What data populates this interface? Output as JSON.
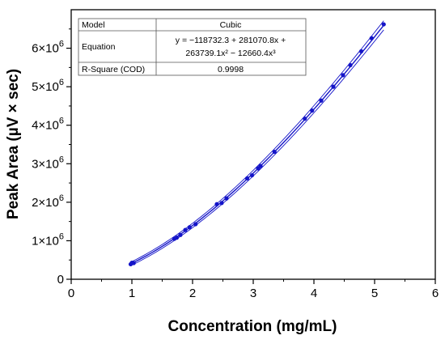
{
  "chart_data": {
    "type": "scatter",
    "xlabel": "Concentration (mg/mL)",
    "ylabel": "Peak Area (µV × sec)",
    "xlim": [
      0,
      6
    ],
    "ylim": [
      0,
      7000000
    ],
    "x_ticks": [
      {
        "value": 0,
        "label": "0"
      },
      {
        "value": 1,
        "label": "1"
      },
      {
        "value": 2,
        "label": "2"
      },
      {
        "value": 3,
        "label": "3"
      },
      {
        "value": 4,
        "label": "4"
      },
      {
        "value": 5,
        "label": "5"
      },
      {
        "value": 6,
        "label": "6"
      }
    ],
    "y_ticks": [
      {
        "value": 0,
        "label": "0",
        "exp": ""
      },
      {
        "value": 1000000,
        "label": "1×10",
        "exp": "6"
      },
      {
        "value": 2000000,
        "label": "2×10",
        "exp": "6"
      },
      {
        "value": 3000000,
        "label": "3×10",
        "exp": "6"
      },
      {
        "value": 4000000,
        "label": "4×10",
        "exp": "6"
      },
      {
        "value": 5000000,
        "label": "5×10",
        "exp": "6"
      },
      {
        "value": 6000000,
        "label": "6×10",
        "exp": "6"
      }
    ],
    "grid": false,
    "fit": {
      "model": "cubic",
      "coefficients": [
        -118732.3,
        281070.8,
        263739.1,
        -12660.4
      ],
      "x_range": [
        0.98,
        5.15
      ]
    },
    "series": [
      {
        "color": "#1414c8",
        "points": [
          [
            0.98,
            390000
          ],
          [
            1.0,
            430000
          ],
          [
            1.03,
            420000
          ],
          [
            1.7,
            1050000
          ],
          [
            1.74,
            1080000
          ],
          [
            1.8,
            1150000
          ],
          [
            1.88,
            1280000
          ],
          [
            1.95,
            1350000
          ],
          [
            2.05,
            1430000
          ],
          [
            2.4,
            1950000
          ],
          [
            2.48,
            1980000
          ],
          [
            2.56,
            2100000
          ],
          [
            2.9,
            2620000
          ],
          [
            2.98,
            2700000
          ],
          [
            3.08,
            2880000
          ],
          [
            3.12,
            2940000
          ],
          [
            3.35,
            3310000
          ],
          [
            3.85,
            4170000
          ],
          [
            3.97,
            4380000
          ],
          [
            4.12,
            4640000
          ],
          [
            4.32,
            5000000
          ],
          [
            4.48,
            5300000
          ],
          [
            4.6,
            5560000
          ],
          [
            4.78,
            5920000
          ],
          [
            4.95,
            6260000
          ],
          [
            5.15,
            6620000
          ]
        ]
      }
    ],
    "table": {
      "rows": [
        {
          "label": "Model",
          "value": "Cubic"
        },
        {
          "label": "Equation",
          "value_lines": [
            "y = −118732.3 + 281070.8x +",
            "263739.1x² − 12660.4x³"
          ]
        },
        {
          "label": "R-Square (COD)",
          "value": "0.9998"
        }
      ]
    }
  }
}
